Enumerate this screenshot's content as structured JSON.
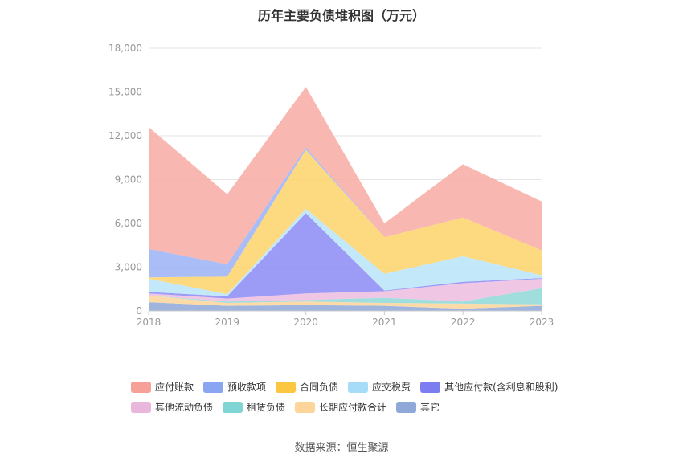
{
  "chart_data": {
    "type": "area",
    "stacked": true,
    "title": "历年主要负债堆积图（万元）",
    "x": [
      "2018",
      "2019",
      "2020",
      "2021",
      "2022",
      "2023"
    ],
    "ylim": [
      0,
      18000
    ],
    "yticks": [
      0,
      3000,
      6000,
      9000,
      12000,
      15000,
      18000
    ],
    "ytick_labels": [
      "0",
      "3,000",
      "6,000",
      "9,000",
      "12,000",
      "15,000",
      "18,000"
    ],
    "grid": true,
    "legend_position": "bottom",
    "series": [
      {
        "name": "其它",
        "color": "#8fa8d8",
        "values": [
          600,
          350,
          400,
          350,
          150,
          350
        ]
      },
      {
        "name": "长期应付款合计",
        "color": "#fcd59a",
        "values": [
          450,
          200,
          250,
          200,
          350,
          100
        ]
      },
      {
        "name": "租赁负债",
        "color": "#8fd8d8",
        "values": [
          0,
          100,
          100,
          350,
          150,
          1100
        ]
      },
      {
        "name": "其他流动负债",
        "color": "#ecbde0",
        "values": [
          150,
          200,
          450,
          450,
          1250,
          650
        ]
      },
      {
        "name": "其他应付款(含利息和股利)",
        "color": "#8b8bf5",
        "values": [
          100,
          150,
          5500,
          50,
          100,
          50
        ]
      },
      {
        "name": "应交税费",
        "color": "#b8e4f8",
        "values": [
          900,
          150,
          300,
          1150,
          1750,
          200
        ]
      },
      {
        "name": "合同负债",
        "color": "#fdd36a",
        "values": [
          100,
          1200,
          4050,
          2500,
          2650,
          1700
        ]
      },
      {
        "name": "预收款项",
        "color": "#9bb2f4",
        "values": [
          1950,
          850,
          150,
          0,
          0,
          0
        ]
      },
      {
        "name": "应付账款",
        "color": "#f8aaa4",
        "values": [
          8350,
          4800,
          4150,
          950,
          3650,
          3350
        ]
      }
    ],
    "legend_rows": [
      [
        "应付账款",
        "预收款项",
        "合同负债",
        "应交税费",
        "其他应付款(含利息和股利)"
      ],
      [
        "其他流动负债",
        "租赁负债",
        "长期应付款合计",
        "其它"
      ]
    ],
    "legend_colors": {
      "应付账款": "#f5a19a",
      "预收款项": "#8aa6f3",
      "合同负债": "#fbc640",
      "应交税费": "#a6dcf7",
      "其他应付款(含利息和股利)": "#7d7df2",
      "其他流动负债": "#e9b7dc",
      "租赁负债": "#7fd4d4",
      "长期应付款合计": "#fcd59a",
      "其它": "#8fa8d8"
    }
  },
  "source": "数据来源：恒生聚源"
}
